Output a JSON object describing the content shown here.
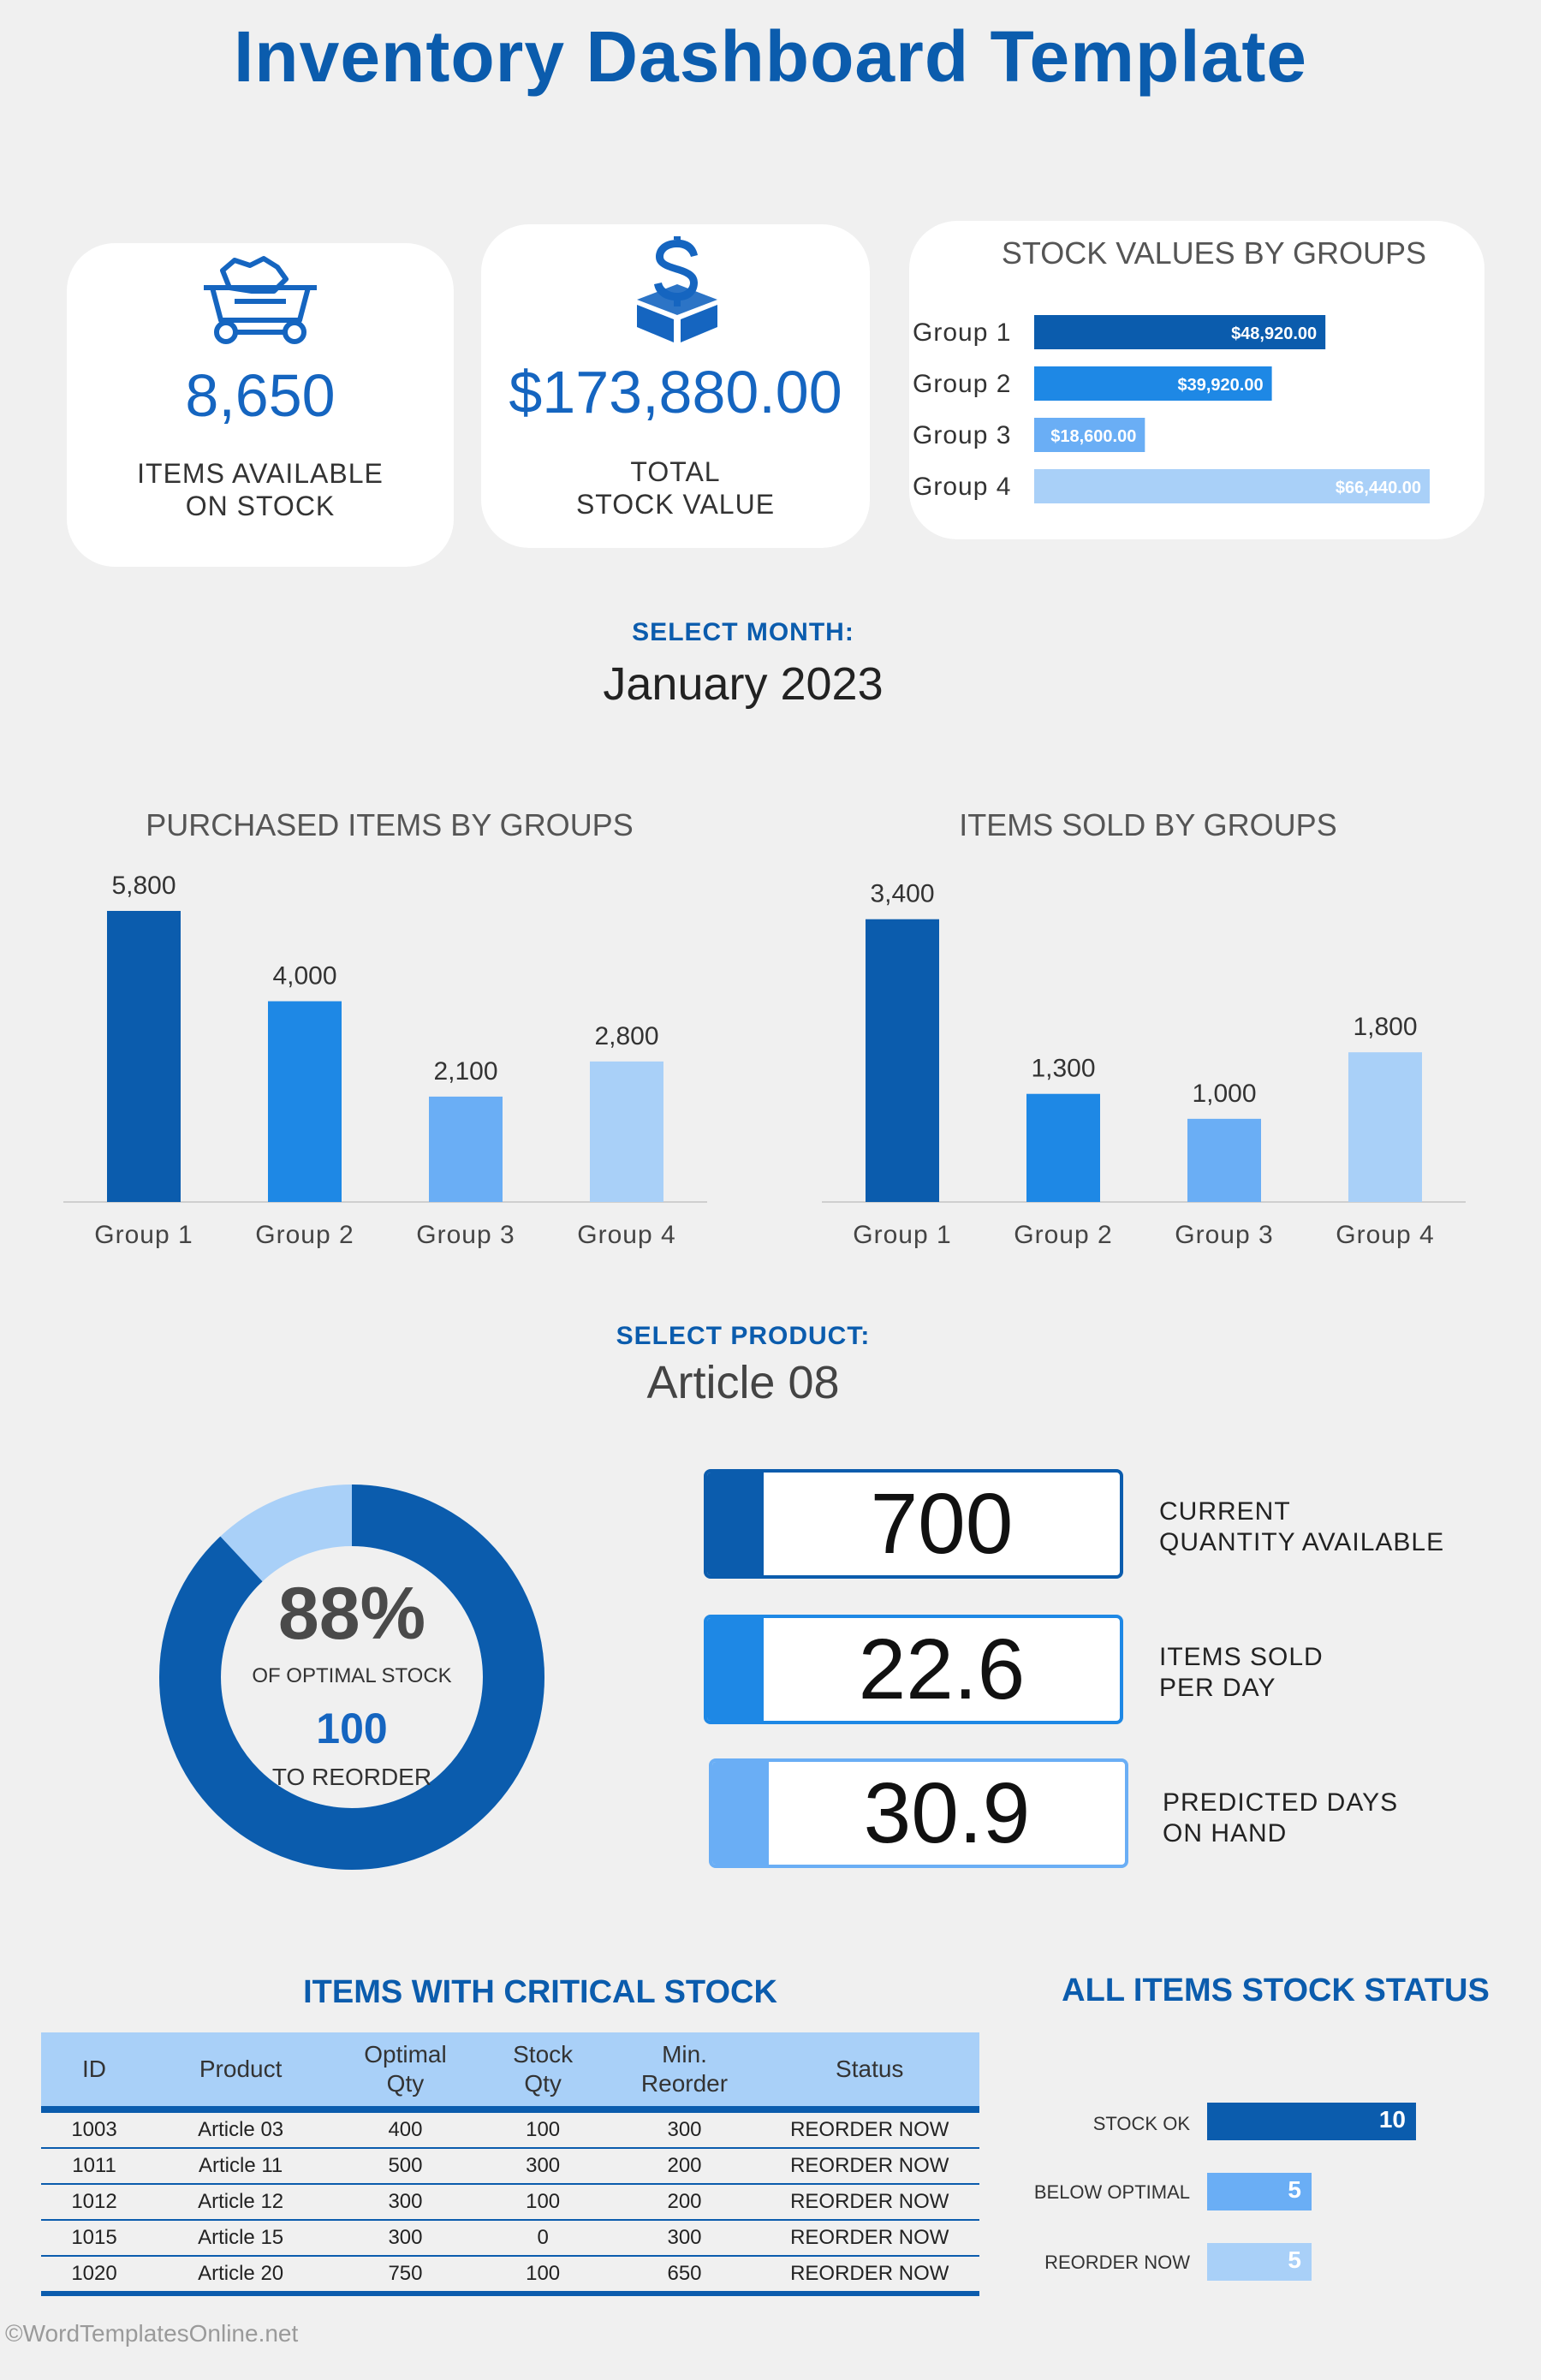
{
  "title": "Inventory Dashboard Template",
  "kpis": {
    "items": {
      "value": "8,650",
      "label_line1": "ITEMS AVAILABLE",
      "label_line2": "ON STOCK",
      "icon": "mine-cart-icon"
    },
    "value": {
      "value": "$173,880.00",
      "label_line1": "TOTAL",
      "label_line2": "STOCK VALUE",
      "icon": "dollar-box-icon"
    }
  },
  "month": {
    "label": "SELECT MONTH:",
    "value": "January 2023"
  },
  "product": {
    "label": "SELECT PRODUCT:",
    "value": "Article 08"
  },
  "donut": {
    "percent_text": "88%",
    "caption": "OF OPTIMAL STOCK",
    "reorder_value": "100",
    "reorder_label": "TO REORDER",
    "fraction": 0.88,
    "color_main": "#0b5cad",
    "color_rest": "#a9d0f8"
  },
  "metrics": [
    {
      "value": "700",
      "label_line1": "CURRENT",
      "label_line2": "QUANTITY AVAILABLE",
      "color": "#0b5cad"
    },
    {
      "value": "22.6",
      "label_line1": "ITEMS SOLD",
      "label_line2": "PER DAY",
      "color": "#1e88e5"
    },
    {
      "value": "30.9",
      "label_line1": "PREDICTED DAYS",
      "label_line2": "ON HAND",
      "color": "#6aaef5"
    }
  ],
  "critical": {
    "title": "ITEMS WITH CRITICAL STOCK",
    "headers": [
      "ID",
      "Product",
      "Optimal Qty",
      "Stock Qty",
      "Min. Reorder",
      "Status"
    ],
    "rows": [
      [
        "1003",
        "Article 03",
        "400",
        "100",
        "300",
        "REORDER NOW"
      ],
      [
        "1011",
        "Article 11",
        "500",
        "300",
        "200",
        "REORDER NOW"
      ],
      [
        "1012",
        "Article 12",
        "300",
        "100",
        "200",
        "REORDER NOW"
      ],
      [
        "1015",
        "Article 15",
        "300",
        "0",
        "300",
        "REORDER NOW"
      ],
      [
        "1020",
        "Article 20",
        "750",
        "100",
        "650",
        "REORDER NOW"
      ]
    ]
  },
  "status": {
    "title": "ALL ITEMS STOCK STATUS",
    "items": [
      {
        "label": "STOCK OK",
        "value": "10",
        "count": 10,
        "color": "#0b5cad"
      },
      {
        "label": "BELOW OPTIMAL",
        "value": "5",
        "count": 5,
        "color": "#6aaef5"
      },
      {
        "label": "REORDER NOW",
        "value": "5",
        "count": 5,
        "color": "#a9d0f8"
      }
    ]
  },
  "footer": "©WordTemplatesOnline.net",
  "chart_data": [
    {
      "type": "bar",
      "orientation": "horizontal",
      "title": "STOCK VALUES BY GROUPS",
      "categories": [
        "Group 1",
        "Group 2",
        "Group 3",
        "Group 4"
      ],
      "values": [
        48920,
        39920,
        18600,
        66440
      ],
      "labels": [
        "$48,920.00",
        "$39,920.00",
        "$18,600.00",
        "$66,440.00"
      ],
      "colors": [
        "#0b5cad",
        "#1e88e5",
        "#6aaef5",
        "#a9d0f8"
      ]
    },
    {
      "type": "bar",
      "title": "PURCHASED ITEMS BY GROUPS",
      "categories": [
        "Group 1",
        "Group 2",
        "Group 3",
        "Group 4"
      ],
      "values": [
        5800,
        4000,
        2100,
        2800
      ],
      "labels": [
        "5,800",
        "4,000",
        "2,100",
        "2,800"
      ],
      "colors": [
        "#0b5cad",
        "#1e88e5",
        "#6aaef5",
        "#a9d0f8"
      ]
    },
    {
      "type": "bar",
      "title": "ITEMS SOLD BY GROUPS",
      "categories": [
        "Group 1",
        "Group 2",
        "Group 3",
        "Group 4"
      ],
      "values": [
        3400,
        1300,
        1000,
        1800
      ],
      "labels": [
        "3,400",
        "1,300",
        "1,000",
        "1,800"
      ],
      "colors": [
        "#0b5cad",
        "#1e88e5",
        "#6aaef5",
        "#a9d0f8"
      ]
    }
  ]
}
